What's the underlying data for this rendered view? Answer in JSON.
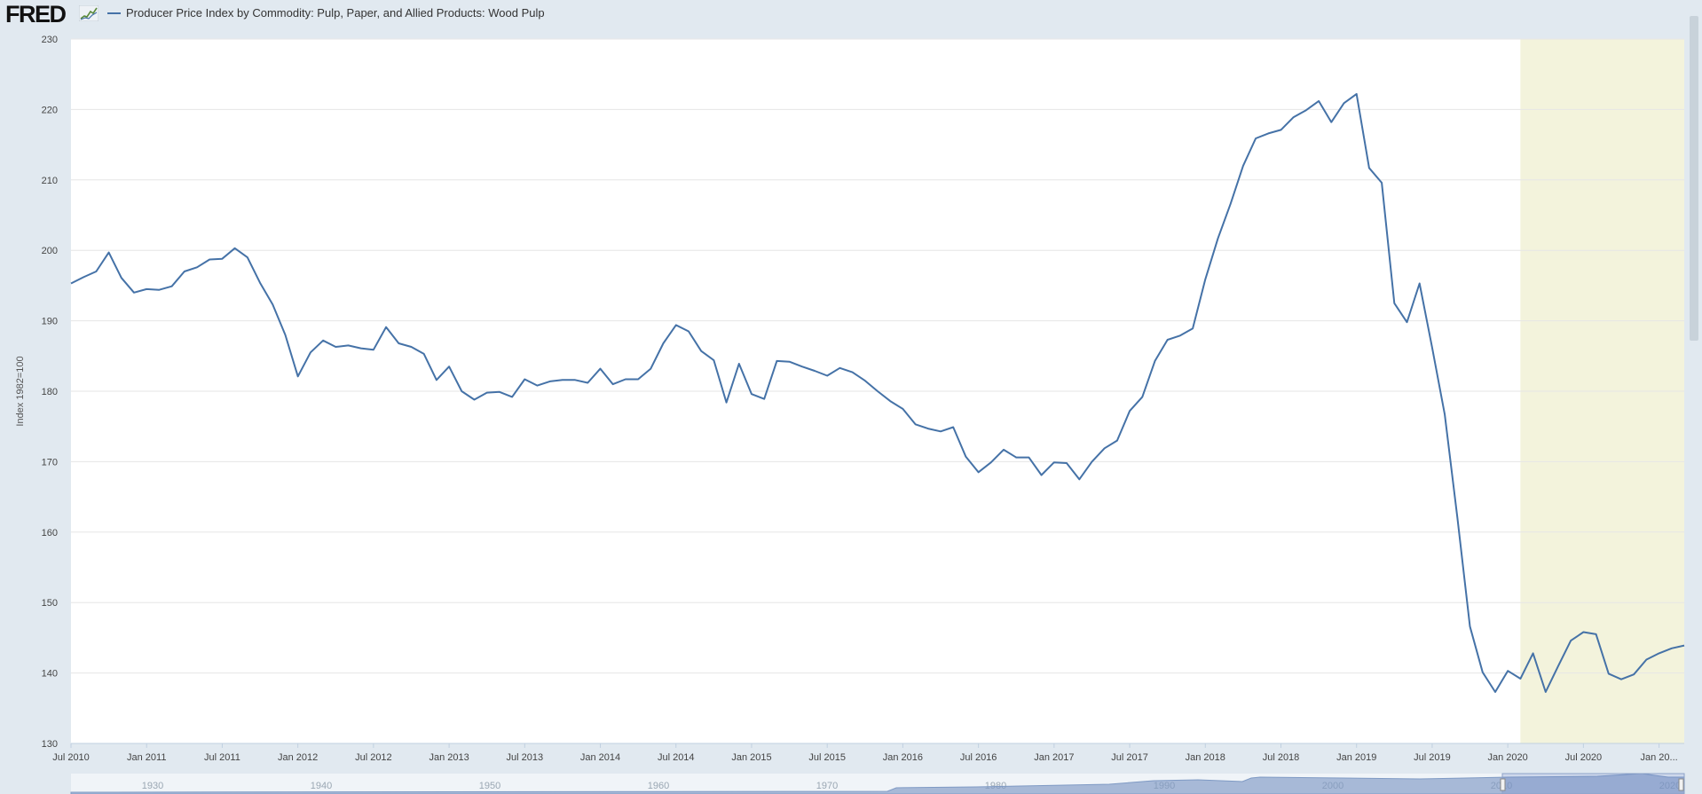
{
  "header": {
    "logo_text": "FRED",
    "logo_icon": "chart-trend-icon",
    "series_title": "Producer Price Index by Commodity: Pulp, Paper, and Allied Products: Wood Pulp"
  },
  "colors": {
    "series": "#4572a7",
    "recession": "#f3f3dc",
    "background": "#e1e9f0",
    "grid": "#e6e6e6",
    "navigator": "#7f9ac4"
  },
  "chart_data": {
    "type": "line",
    "title": "",
    "xlabel": "",
    "ylabel": "Index 1982=100",
    "ylim": [
      130,
      230
    ],
    "yticks": [
      130,
      140,
      150,
      160,
      170,
      180,
      190,
      200,
      210,
      220,
      230
    ],
    "grid": true,
    "x_start": "2010-07",
    "x_end": "2021-03",
    "xticks": [
      {
        "date": "2010-07",
        "label": "Jul 2010"
      },
      {
        "date": "2011-01",
        "label": "Jan 2011"
      },
      {
        "date": "2011-07",
        "label": "Jul 2011"
      },
      {
        "date": "2012-01",
        "label": "Jan 2012"
      },
      {
        "date": "2012-07",
        "label": "Jul 2012"
      },
      {
        "date": "2013-01",
        "label": "Jan 2013"
      },
      {
        "date": "2013-07",
        "label": "Jul 2013"
      },
      {
        "date": "2014-01",
        "label": "Jan 2014"
      },
      {
        "date": "2014-07",
        "label": "Jul 2014"
      },
      {
        "date": "2015-01",
        "label": "Jan 2015"
      },
      {
        "date": "2015-07",
        "label": "Jul 2015"
      },
      {
        "date": "2016-01",
        "label": "Jan 2016"
      },
      {
        "date": "2016-07",
        "label": "Jul 2016"
      },
      {
        "date": "2017-01",
        "label": "Jan 2017"
      },
      {
        "date": "2017-07",
        "label": "Jul 2017"
      },
      {
        "date": "2018-01",
        "label": "Jan 2018"
      },
      {
        "date": "2018-07",
        "label": "Jul 2018"
      },
      {
        "date": "2019-01",
        "label": "Jan 2019"
      },
      {
        "date": "2019-07",
        "label": "Jul 2019"
      },
      {
        "date": "2020-01",
        "label": "Jan 2020"
      },
      {
        "date": "2020-07",
        "label": "Jul 2020"
      },
      {
        "date": "2021-01",
        "label": "Jan 20..."
      }
    ],
    "recession": {
      "start": "2020-02",
      "end": "2021-03"
    },
    "series": [
      {
        "name": "Producer Price Index by Commodity: Pulp, Paper, and Allied Products: Wood Pulp",
        "x": [
          "2010-07",
          "2010-08",
          "2010-09",
          "2010-10",
          "2010-11",
          "2010-12",
          "2011-01",
          "2011-02",
          "2011-03",
          "2011-04",
          "2011-05",
          "2011-06",
          "2011-07",
          "2011-08",
          "2011-09",
          "2011-10",
          "2011-11",
          "2011-12",
          "2012-01",
          "2012-02",
          "2012-03",
          "2012-04",
          "2012-05",
          "2012-06",
          "2012-07",
          "2012-08",
          "2012-09",
          "2012-10",
          "2012-11",
          "2012-12",
          "2013-01",
          "2013-02",
          "2013-03",
          "2013-04",
          "2013-05",
          "2013-06",
          "2013-07",
          "2013-08",
          "2013-09",
          "2013-10",
          "2013-11",
          "2013-12",
          "2014-01",
          "2014-02",
          "2014-03",
          "2014-04",
          "2014-05",
          "2014-06",
          "2014-07",
          "2014-08",
          "2014-09",
          "2014-10",
          "2014-11",
          "2014-12",
          "2015-01",
          "2015-02",
          "2015-03",
          "2015-04",
          "2015-05",
          "2015-06",
          "2015-07",
          "2015-08",
          "2015-09",
          "2015-10",
          "2015-11",
          "2015-12",
          "2016-01",
          "2016-02",
          "2016-03",
          "2016-04",
          "2016-05",
          "2016-06",
          "2016-07",
          "2016-08",
          "2016-09",
          "2016-10",
          "2016-11",
          "2016-12",
          "2017-01",
          "2017-02",
          "2017-03",
          "2017-04",
          "2017-05",
          "2017-06",
          "2017-07",
          "2017-08",
          "2017-09",
          "2017-10",
          "2017-11",
          "2017-12",
          "2018-01",
          "2018-02",
          "2018-03",
          "2018-04",
          "2018-05",
          "2018-06",
          "2018-07",
          "2018-08",
          "2018-09",
          "2018-10",
          "2018-11",
          "2018-12",
          "2019-01",
          "2019-02",
          "2019-03",
          "2019-04",
          "2019-05",
          "2019-06",
          "2019-07",
          "2019-08",
          "2019-09",
          "2019-10",
          "2019-11",
          "2019-12",
          "2020-01",
          "2020-02",
          "2020-03",
          "2020-04",
          "2020-05",
          "2020-06",
          "2020-07",
          "2020-08",
          "2020-09",
          "2020-10",
          "2020-11",
          "2020-12",
          "2021-01",
          "2021-02",
          "2021-03"
        ],
        "y": [
          195.3,
          196.2,
          197.0,
          199.7,
          196.1,
          194.0,
          194.5,
          194.4,
          194.9,
          197.0,
          197.6,
          198.7,
          198.8,
          200.3,
          199.0,
          195.4,
          192.3,
          188.0,
          182.1,
          185.5,
          187.2,
          186.3,
          186.5,
          186.1,
          185.9,
          189.1,
          186.8,
          186.3,
          185.3,
          181.6,
          183.5,
          180.0,
          178.8,
          179.8,
          179.9,
          179.2,
          181.7,
          180.8,
          181.4,
          181.6,
          181.6,
          181.2,
          183.2,
          181.0,
          181.7,
          181.7,
          183.2,
          186.8,
          189.4,
          188.5,
          185.7,
          184.4,
          178.4,
          183.9,
          179.6,
          178.9,
          184.3,
          184.2,
          183.5,
          182.9,
          182.2,
          183.3,
          182.7,
          181.5,
          180.0,
          178.6,
          177.5,
          175.3,
          174.7,
          174.3,
          174.9,
          170.7,
          168.5,
          169.9,
          171.7,
          170.6,
          170.6,
          168.1,
          169.9,
          169.8,
          167.5,
          170.0,
          171.9,
          173.0,
          177.2,
          179.2,
          184.3,
          187.3,
          187.9,
          188.9,
          195.9,
          201.7,
          206.6,
          212.0,
          215.9,
          216.6,
          217.1,
          218.9,
          219.9,
          221.2,
          218.2,
          220.9,
          222.2,
          211.7,
          209.6,
          192.5,
          189.8,
          195.3,
          186.2,
          176.7,
          162.1,
          146.6,
          140.1,
          137.3,
          140.3,
          139.2,
          142.8,
          137.3,
          141.0,
          144.6,
          145.8,
          145.5,
          139.9,
          139.1,
          139.8,
          141.9,
          142.8,
          143.5,
          143.9
        ]
      }
    ],
    "navigator": {
      "labels": [
        "1930",
        "1940",
        "1950",
        "1960",
        "1970",
        "1980",
        "1990",
        "2000",
        "2010",
        "2020"
      ]
    }
  }
}
